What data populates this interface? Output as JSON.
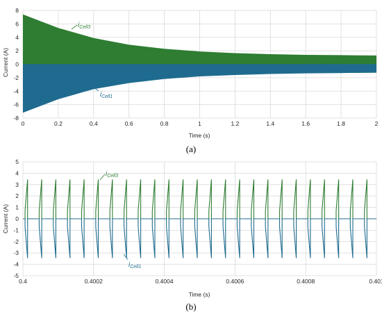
{
  "colors": {
    "green": "#2e7d32",
    "blue": "#1f6b8f",
    "grid": "#d9d9d9"
  },
  "chart_data": [
    {
      "type": "area",
      "caption": "(a)",
      "xlabel": "Time (s)",
      "ylabel": "Current (A)",
      "xlim": [
        0,
        2
      ],
      "ylim": [
        -8,
        8
      ],
      "xticks": [
        "0",
        "0.2",
        "0.4",
        "0.6",
        "0.8",
        "1",
        "1.2",
        "1.4",
        "1.6",
        "1.8",
        "2"
      ],
      "yticks": [
        "8",
        "6",
        "4",
        "2",
        "0",
        "-2",
        "-4",
        "-6",
        "-8"
      ],
      "grid": true,
      "series": [
        {
          "name": "i_Cell3",
          "label_main": "i",
          "label_sub": "Cell3",
          "color": "#2e7d32",
          "x": [
            0,
            0.2,
            0.4,
            0.6,
            0.8,
            1.0,
            1.2,
            1.4,
            1.6,
            1.8,
            2.0
          ],
          "upper": [
            7.4,
            5.4,
            3.9,
            2.9,
            2.3,
            1.9,
            1.65,
            1.5,
            1.4,
            1.35,
            1.3
          ],
          "lower": [
            0,
            0,
            0,
            0,
            -1.6,
            -1.5,
            -1.4,
            -1.35,
            -1.3,
            -1.3,
            -1.25
          ]
        },
        {
          "name": "i_Cell1",
          "label_main": "i",
          "label_sub": "Cell1",
          "color": "#1f6b8f",
          "x": [
            0,
            0.2,
            0.4,
            0.6,
            0.8,
            1.0,
            1.2,
            1.4,
            1.6,
            1.8,
            2.0
          ],
          "upper": [
            0,
            0,
            0,
            0,
            0,
            0,
            0,
            0,
            0,
            0,
            0
          ],
          "lower": [
            -7.2,
            -5.2,
            -3.7,
            -2.8,
            -2.2,
            -1.8,
            -1.6,
            -1.45,
            -1.35,
            -1.3,
            -1.25
          ]
        }
      ]
    },
    {
      "type": "line",
      "caption": "(b)",
      "xlabel": "Time (s)",
      "ylabel": "Current (A)",
      "xlim": [
        0.4,
        0.401
      ],
      "ylim": [
        -5,
        5
      ],
      "xticks": [
        "0.4",
        "0.4002",
        "0.4004",
        "0.4006",
        "0.4008",
        "0.401"
      ],
      "yticks": [
        "5",
        "4",
        "3",
        "2",
        "1",
        "0",
        "-1",
        "-2",
        "-3",
        "-4",
        "-5"
      ],
      "grid": true,
      "period": 4e-05,
      "series": [
        {
          "name": "i_Cell3",
          "label_main": "i",
          "label_sub": "Cell3",
          "color": "#2e7d32",
          "peak": 3.45,
          "sign": 1
        },
        {
          "name": "i_Cell1",
          "label_main": "i",
          "label_sub": "Cell1",
          "color": "#1f6b8f",
          "peak": 3.45,
          "sign": -1
        }
      ]
    }
  ]
}
